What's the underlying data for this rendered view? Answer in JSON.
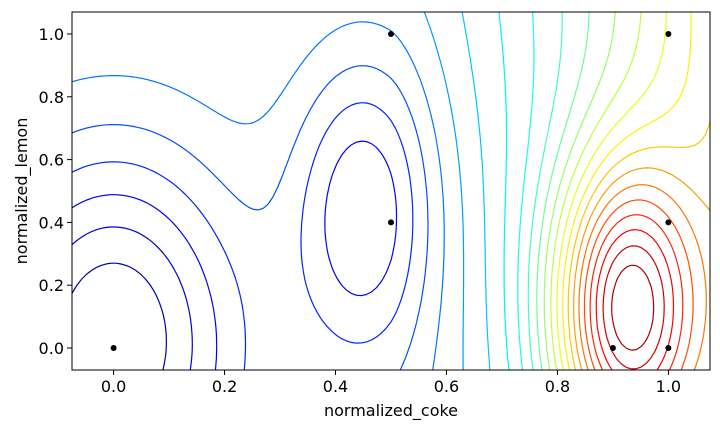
{
  "chart_data": {
    "type": "contour",
    "xlabel": "normalized_coke",
    "ylabel": "normalized_lemon",
    "xlim": [
      -0.075,
      1.075
    ],
    "ylim": [
      -0.07,
      1.07
    ],
    "xticks": [
      0.0,
      0.2,
      0.4,
      0.6,
      0.8,
      1.0
    ],
    "xtick_labels": [
      "0.0",
      "0.2",
      "0.4",
      "0.6",
      "0.8",
      "1.0"
    ],
    "yticks": [
      0.0,
      0.2,
      0.4,
      0.6,
      0.8,
      1.0
    ],
    "ytick_labels": [
      "0.0",
      "0.2",
      "0.4",
      "0.6",
      "0.8",
      "1.0"
    ],
    "grid": false,
    "colormap": "jet",
    "points": [
      {
        "x": 0.0,
        "y": 0.0
      },
      {
        "x": 0.5,
        "y": 1.0
      },
      {
        "x": 0.5,
        "y": 0.4
      },
      {
        "x": 0.9,
        "y": 0.0
      },
      {
        "x": 1.0,
        "y": 1.0
      },
      {
        "x": 1.0,
        "y": 0.4
      },
      {
        "x": 1.0,
        "y": 0.0
      }
    ],
    "point_color": "#000000",
    "contour_level_count": 24
  }
}
